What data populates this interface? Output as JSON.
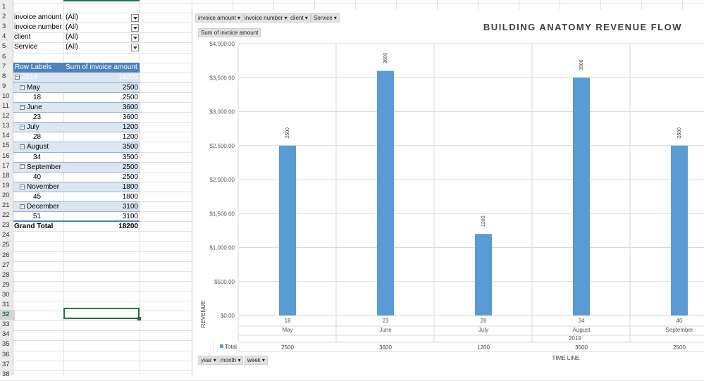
{
  "row_numbers": [
    "1",
    "2",
    "3",
    "4",
    "5",
    "6",
    "7",
    "8",
    "9",
    "10",
    "11",
    "12",
    "13",
    "14",
    "15",
    "16",
    "17",
    "18",
    "19",
    "20",
    "21",
    "22",
    "23",
    "24",
    "25",
    "26",
    "27",
    "28",
    "29",
    "30",
    "31",
    "32",
    "33",
    "34",
    "35",
    "36",
    "37",
    "38"
  ],
  "active_row": "32",
  "filters": [
    {
      "label": "invoice amount",
      "value": "(All)"
    },
    {
      "label": "invoice number",
      "value": "(All)"
    },
    {
      "label": "client",
      "value": "(All)"
    },
    {
      "label": "Service",
      "value": "(All)"
    }
  ],
  "pivot": {
    "header_row_labels": "Row Labels",
    "header_sum": "Sum of invoice amount",
    "year": {
      "label": "2019",
      "value": "18200"
    },
    "rows": [
      {
        "label": "May",
        "value": "2500",
        "type": "month"
      },
      {
        "label": "18",
        "value": "2500",
        "type": "week"
      },
      {
        "label": "June",
        "value": "3600",
        "type": "month"
      },
      {
        "label": "23",
        "value": "3600",
        "type": "week"
      },
      {
        "label": "July",
        "value": "1200",
        "type": "month"
      },
      {
        "label": "28",
        "value": "1200",
        "type": "week"
      },
      {
        "label": "August",
        "value": "3500",
        "type": "month"
      },
      {
        "label": "34",
        "value": "3500",
        "type": "week"
      },
      {
        "label": "September",
        "value": "2500",
        "type": "month"
      },
      {
        "label": "40",
        "value": "2500",
        "type": "week"
      },
      {
        "label": "November",
        "value": "1800",
        "type": "month"
      },
      {
        "label": "45",
        "value": "1800",
        "type": "week"
      },
      {
        "label": "December",
        "value": "3100",
        "type": "month"
      },
      {
        "label": "51",
        "value": "3100",
        "type": "week"
      }
    ],
    "grand_total_label": "Grand Total",
    "grand_total_value": "18200"
  },
  "chart_filter_buttons": [
    "invoice amount",
    "invoice number",
    "client",
    "Service"
  ],
  "value_field_button": "Sum of invoice amount",
  "axis_field_buttons": [
    "year",
    "month",
    "week"
  ],
  "chart_data": {
    "type": "bar",
    "title": "BUILDING ANATOMY REVENUE FLOW",
    "ylabel": "REVENUE",
    "xlabel": "TIME LINE",
    "ylim": [
      0,
      4000
    ],
    "y_ticks": [
      "$0.00",
      "$500.00",
      "$1,000.00",
      "$1,500.00",
      "$2,000.00",
      "$2,500.00",
      "$3,000.00",
      "$3,500.00",
      "$4,000.00"
    ],
    "categories": [
      "18",
      "23",
      "28",
      "34",
      "40"
    ],
    "months": [
      "May",
      "June",
      "July",
      "August",
      "September"
    ],
    "year_label": "2019",
    "series": [
      {
        "name": "Total",
        "values": [
          2500,
          3600,
          1200,
          3500,
          2500
        ],
        "labels": [
          "2500",
          "3600",
          "1200",
          "3500",
          "2500"
        ]
      }
    ],
    "bar_color": "#5b9bd5",
    "grid": true
  }
}
